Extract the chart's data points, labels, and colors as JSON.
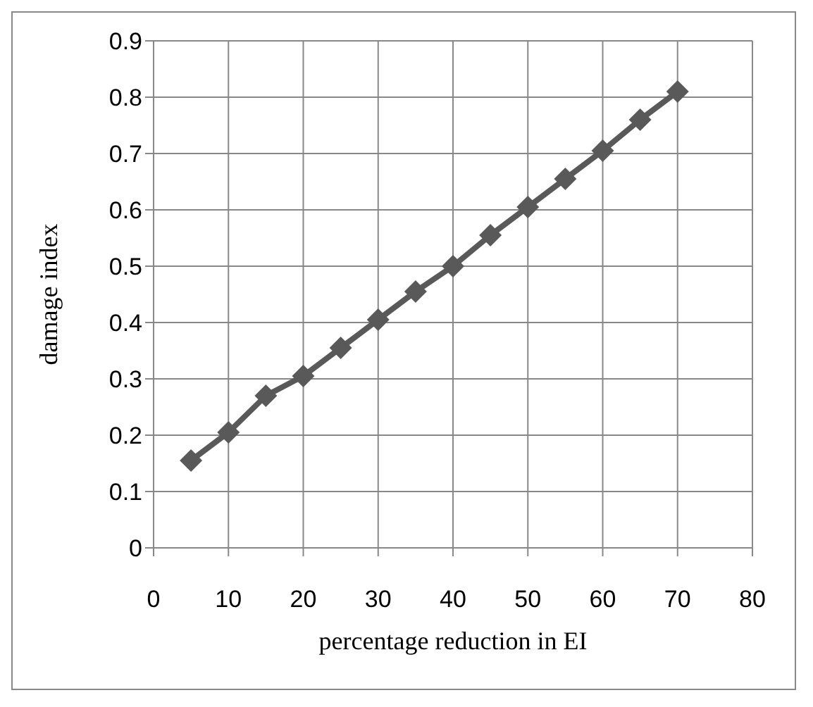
{
  "chart_data": {
    "type": "line",
    "xlabel": "percentage reduction in EI",
    "ylabel": "damage index",
    "x": [
      5,
      10,
      15,
      20,
      25,
      30,
      35,
      40,
      45,
      50,
      55,
      60,
      65,
      70
    ],
    "series": [
      {
        "color": "#595959",
        "values": [
          0.155,
          0.205,
          0.27,
          0.305,
          0.355,
          0.405,
          0.455,
          0.5,
          0.555,
          0.605,
          0.655,
          0.705,
          0.76,
          0.81
        ]
      }
    ],
    "xlim": [
      0,
      80
    ],
    "xticks": [
      0,
      10,
      20,
      30,
      40,
      50,
      60,
      70,
      80
    ],
    "ylim": [
      0,
      0.9
    ],
    "yticks": [
      0,
      0.1,
      0.2,
      0.3,
      0.4,
      0.5,
      0.6,
      0.7,
      0.8,
      0.9
    ],
    "grid": true,
    "marker": "diamond",
    "line_style": "solid"
  }
}
